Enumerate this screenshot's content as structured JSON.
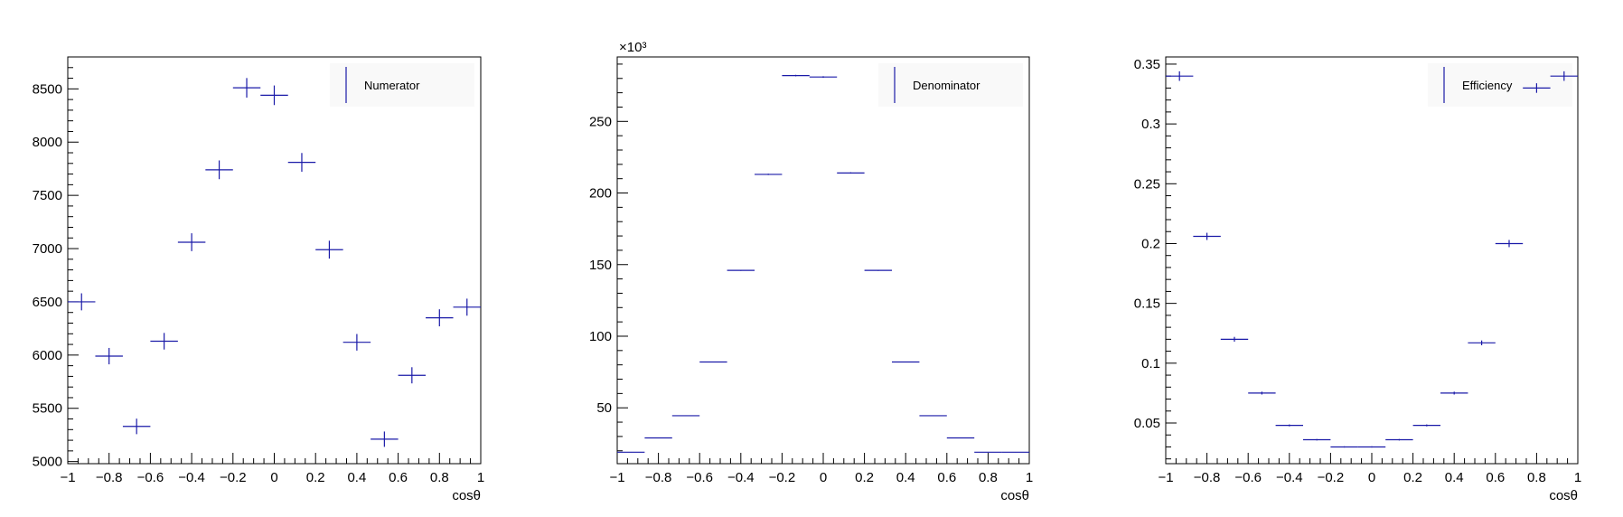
{
  "chart_data": [
    {
      "type": "scatter",
      "legend": "Numerator",
      "legend_position": "top-right",
      "xlabel": "cosθ",
      "xlim": [
        -1,
        1
      ],
      "ylim": [
        4980,
        8800
      ],
      "x_ticks": [
        "−1",
        "−0.8",
        "−0.6",
        "−0.4",
        "−0.2",
        "0",
        "0.2",
        "0.4",
        "0.6",
        "0.8",
        "1"
      ],
      "y_ticks": [
        {
          "v": 5000,
          "label": "5000"
        },
        {
          "v": 5500,
          "label": "5500"
        },
        {
          "v": 6000,
          "label": "6000"
        },
        {
          "v": 6500,
          "label": "6500"
        },
        {
          "v": 7000,
          "label": "7000"
        },
        {
          "v": 7500,
          "label": "7500"
        },
        {
          "v": 8000,
          "label": "8000"
        },
        {
          "v": 8500,
          "label": "8500"
        }
      ],
      "exponent_label": "",
      "bin_edges": [
        -1,
        -0.8667,
        -0.7333,
        -0.6,
        -0.4667,
        -0.3333,
        -0.2,
        -0.0667,
        0.0667,
        0.2,
        0.3333,
        0.4667,
        0.6,
        0.7333,
        0.8667,
        1
      ],
      "values": [
        6500,
        5990,
        5330,
        6130,
        7060,
        7740,
        8510,
        8440,
        7810,
        6990,
        6120,
        5210,
        5810,
        6350,
        6450
      ],
      "errors": [
        80,
        77,
        73,
        78,
        84,
        88,
        92,
        92,
        88,
        84,
        78,
        72,
        76,
        80,
        80
      ]
    },
    {
      "type": "scatter",
      "legend": "Denominator",
      "legend_position": "top-right",
      "xlabel": "cosθ",
      "xlim": [
        -1,
        1
      ],
      "ylim": [
        11000,
        295000
      ],
      "x_ticks": [
        "−1",
        "−0.8",
        "−0.6",
        "−0.4",
        "−0.2",
        "0",
        "0.2",
        "0.4",
        "0.6",
        "0.8",
        "1"
      ],
      "y_ticks": [
        {
          "v": 50000,
          "label": "50"
        },
        {
          "v": 100000,
          "label": "100"
        },
        {
          "v": 150000,
          "label": "150"
        },
        {
          "v": 200000,
          "label": "200"
        },
        {
          "v": 250000,
          "label": "250"
        }
      ],
      "exponent_label": "×10³",
      "bin_edges": [
        -1,
        -0.8667,
        -0.7333,
        -0.6,
        -0.4667,
        -0.3333,
        -0.2,
        -0.0667,
        0.0667,
        0.2,
        0.3333,
        0.4667,
        0.6,
        0.7333,
        0.8667,
        1
      ],
      "values": [
        19000,
        29000,
        44500,
        82000,
        146000,
        213000,
        282000,
        281000,
        214000,
        146000,
        82000,
        44500,
        29000,
        19000,
        19000
      ],
      "errors": [
        140,
        170,
        210,
        290,
        380,
        460,
        530,
        530,
        460,
        380,
        290,
        210,
        170,
        140,
        140
      ]
    },
    {
      "type": "scatter",
      "legend": "Efficiency",
      "legend_position": "top-right",
      "xlabel": "cosθ",
      "xlim": [
        -1,
        1
      ],
      "ylim": [
        0.016,
        0.356
      ],
      "x_ticks": [
        "−1",
        "−0.8",
        "−0.6",
        "−0.4",
        "−0.2",
        "0",
        "0.2",
        "0.4",
        "0.6",
        "0.8",
        "1"
      ],
      "y_ticks": [
        {
          "v": 0.05,
          "label": "0.05"
        },
        {
          "v": 0.1,
          "label": "0.1"
        },
        {
          "v": 0.15,
          "label": "0.15"
        },
        {
          "v": 0.2,
          "label": "0.2"
        },
        {
          "v": 0.25,
          "label": "0.25"
        },
        {
          "v": 0.3,
          "label": "0.3"
        },
        {
          "v": 0.35,
          "label": "0.35"
        }
      ],
      "exponent_label": "",
      "bin_edges": [
        -1,
        -0.8667,
        -0.7333,
        -0.6,
        -0.4667,
        -0.3333,
        -0.2,
        -0.0667,
        0.0667,
        0.2,
        0.3333,
        0.4667,
        0.6,
        0.7333,
        0.8667,
        1
      ],
      "values": [
        0.34,
        0.206,
        0.12,
        0.075,
        0.048,
        0.036,
        0.03,
        0.03,
        0.036,
        0.048,
        0.075,
        0.117,
        0.2,
        0.33,
        0.34
      ],
      "errors": [
        0.004,
        0.003,
        0.002,
        0.0012,
        0.0008,
        0.0006,
        0.0005,
        0.0005,
        0.0006,
        0.0008,
        0.0012,
        0.002,
        0.003,
        0.004,
        0.004
      ]
    }
  ],
  "colors": {
    "marker": "#1a1aa8",
    "axis": "#000000",
    "legend_bg": "#f9f9f9"
  }
}
